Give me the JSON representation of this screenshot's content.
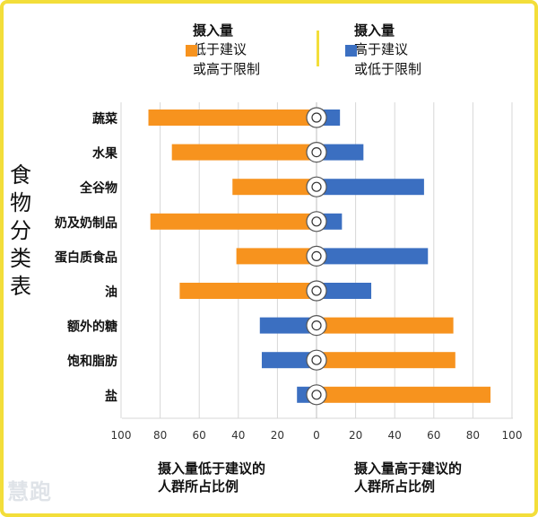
{
  "legend": {
    "left": {
      "title": "摄入量",
      "lines": [
        "低于建议",
        "或高于限制"
      ],
      "color": "#f7931e"
    },
    "right": {
      "title": "摄入量",
      "lines": [
        "高于建议",
        "或低于限制"
      ],
      "color": "#3b6fc1"
    }
  },
  "y_title": [
    "食",
    "物",
    "分",
    "类",
    "表"
  ],
  "footer": {
    "left": [
      "摄入量低于建议的",
      "人群所占比例"
    ],
    "right": [
      "摄入量高于建议的",
      "人群所占比例"
    ]
  },
  "watermark": "慧跑",
  "chart_data": {
    "type": "bar",
    "orientation": "horizontal-diverging",
    "categories": [
      "蔬菜",
      "水果",
      "全谷物",
      "奶及奶制品",
      "蛋白质食品",
      "油",
      "额外的糖",
      "饱和脂肪",
      "盐"
    ],
    "icons": [
      "broccoli-icon",
      "fruit-icon",
      "grain-icon",
      "dairy-icon",
      "protein-icon",
      "oil-icon",
      "sugar-icon",
      "butter-icon",
      "salt-icon"
    ],
    "left_values": [
      86,
      74,
      43,
      85,
      41,
      70,
      29,
      28,
      10
    ],
    "left_colors": [
      "#f7931e",
      "#f7931e",
      "#f7931e",
      "#f7931e",
      "#f7931e",
      "#f7931e",
      "#3b6fc1",
      "#3b6fc1",
      "#3b6fc1"
    ],
    "right_values": [
      12,
      24,
      55,
      13,
      57,
      28,
      70,
      71,
      89
    ],
    "right_colors": [
      "#3b6fc1",
      "#3b6fc1",
      "#3b6fc1",
      "#3b6fc1",
      "#3b6fc1",
      "#3b6fc1",
      "#f7931e",
      "#f7931e",
      "#f7931e"
    ],
    "xticks": [
      "100",
      "80",
      "60",
      "40",
      "20",
      "0",
      "20",
      "40",
      "60",
      "80",
      "100"
    ],
    "xlim": [
      -100,
      100
    ],
    "grid": true
  }
}
